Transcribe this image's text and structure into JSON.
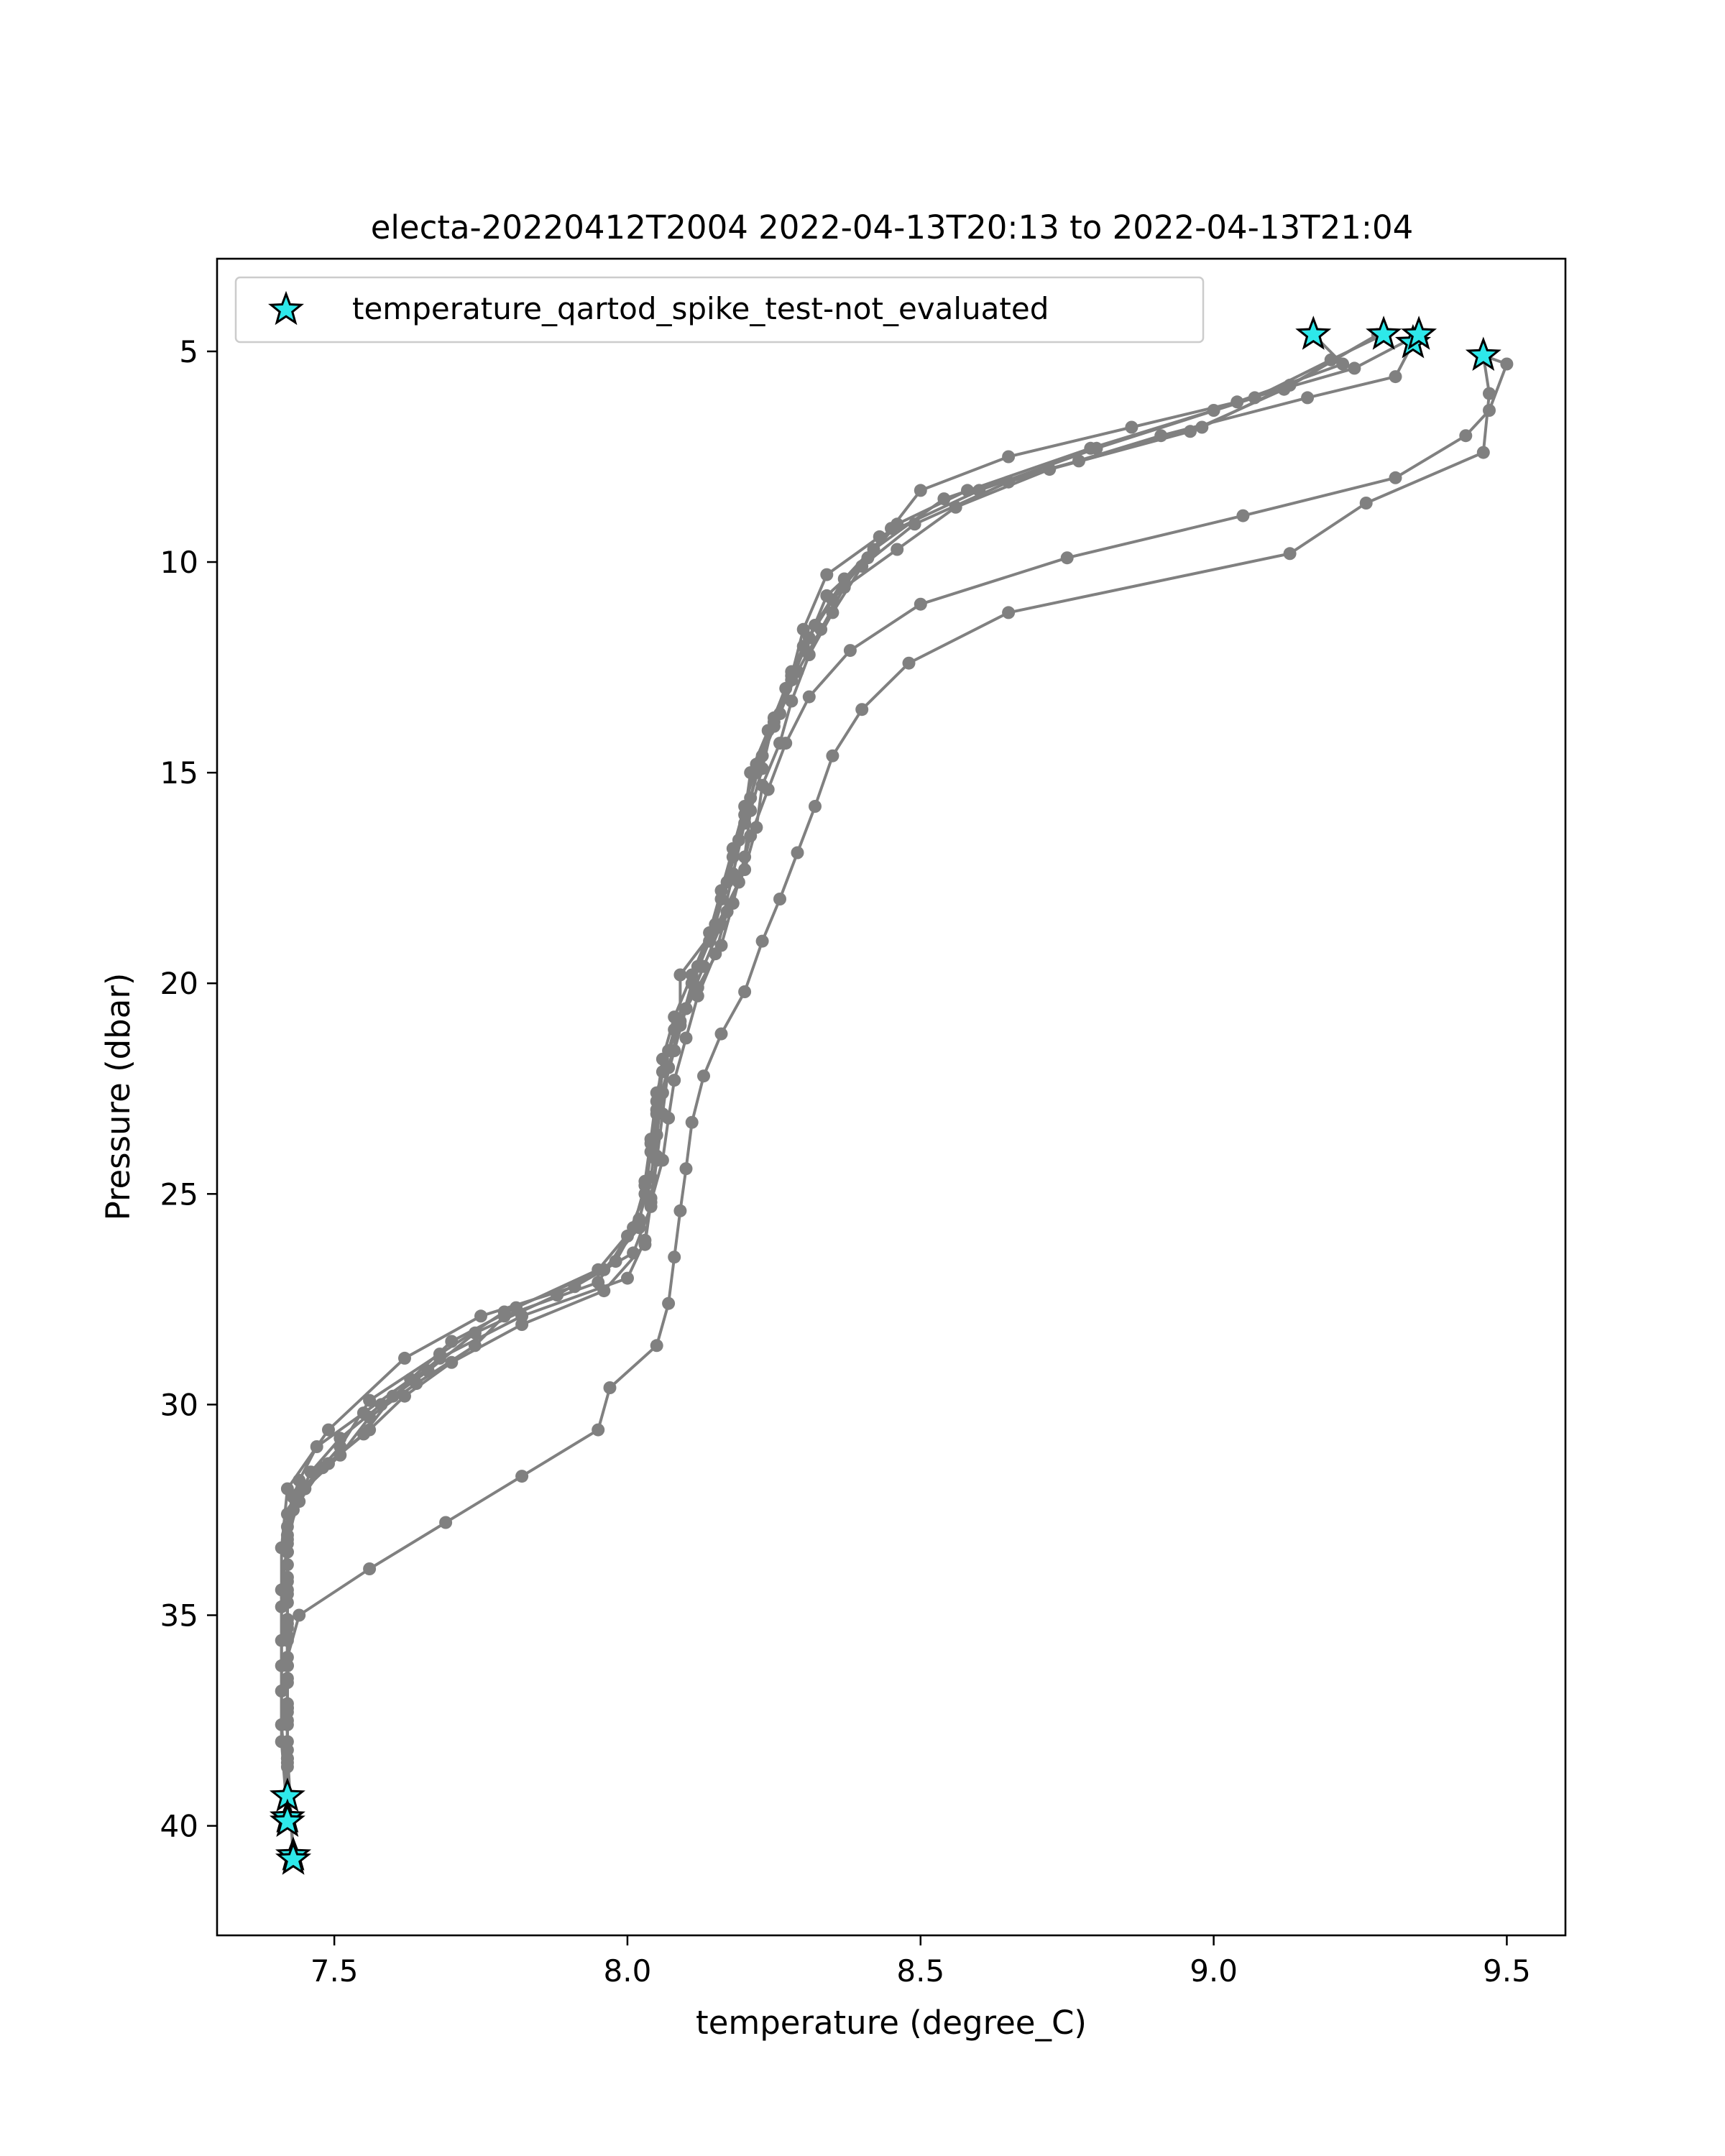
{
  "chart_data": {
    "type": "line",
    "title": "electa-20220412T2004 2022-04-13T20:13 to 2022-04-13T21:04",
    "xlabel": "temperature (degree_C)",
    "ylabel": "Pressure (dbar)",
    "xlim": [
      7.3,
      9.6
    ],
    "ylim": [
      42.6,
      2.8
    ],
    "y_inverted": true,
    "grid": false,
    "x_ticks": [
      7.5,
      8.0,
      8.5,
      9.0,
      9.5
    ],
    "x_tick_labels": [
      "7.5",
      "8.0",
      "8.5",
      "9.0",
      "9.5"
    ],
    "y_ticks": [
      5,
      10,
      15,
      20,
      25,
      30,
      35,
      40
    ],
    "y_tick_labels": [
      "5",
      "10",
      "15",
      "20",
      "25",
      "30",
      "35",
      "40"
    ],
    "legend": {
      "location": "upper left",
      "entries": [
        {
          "label": "temperature_qartod_spike_test-not_evaluated",
          "marker": "star",
          "color": "#2ee8ea"
        }
      ]
    },
    "colors": {
      "profile_line": "#808080",
      "profile_marker": "#808080",
      "flag_marker_fill": "#2ee8ea",
      "flag_marker_edge": "#000000"
    },
    "series": [
      {
        "points": [
          [
            9.46,
            5.1
          ],
          [
            9.5,
            5.3
          ],
          [
            9.47,
            6.4
          ],
          [
            9.43,
            7.0
          ],
          [
            9.31,
            8.0
          ],
          [
            9.05,
            8.9
          ],
          [
            8.75,
            9.9
          ],
          [
            8.5,
            11.0
          ],
          [
            8.38,
            12.1
          ],
          [
            8.31,
            13.2
          ],
          [
            8.27,
            14.3
          ],
          [
            8.24,
            15.4
          ],
          [
            8.21,
            16.5
          ],
          [
            8.19,
            17.6
          ],
          [
            8.15,
            18.7
          ],
          [
            8.09,
            19.8
          ],
          [
            8.09,
            20.9
          ],
          [
            8.07,
            22.0
          ],
          [
            8.06,
            23.1
          ],
          [
            8.05,
            24.2
          ],
          [
            8.04,
            25.3
          ],
          [
            8.01,
            26.4
          ],
          [
            7.91,
            27.2
          ],
          [
            7.75,
            27.9
          ],
          [
            7.62,
            28.9
          ],
          [
            7.49,
            30.6
          ],
          [
            7.42,
            32.0
          ],
          [
            7.41,
            33.4
          ],
          [
            7.41,
            34.8
          ],
          [
            7.41,
            36.2
          ],
          [
            7.41,
            37.6
          ],
          [
            7.42,
            39.3
          ]
        ]
      },
      {
        "points": [
          [
            9.46,
            5.1
          ],
          [
            9.47,
            6.0
          ],
          [
            9.46,
            7.4
          ],
          [
            9.26,
            8.6
          ],
          [
            9.13,
            9.8
          ],
          [
            8.65,
            11.2
          ],
          [
            8.48,
            12.4
          ],
          [
            8.4,
            13.5
          ],
          [
            8.35,
            14.6
          ],
          [
            8.32,
            15.8
          ],
          [
            8.29,
            16.9
          ],
          [
            8.26,
            18.0
          ],
          [
            8.23,
            19.0
          ],
          [
            8.2,
            20.2
          ],
          [
            8.16,
            21.2
          ],
          [
            8.13,
            22.2
          ],
          [
            8.11,
            23.3
          ],
          [
            8.1,
            24.4
          ],
          [
            8.09,
            25.4
          ],
          [
            8.08,
            26.5
          ],
          [
            8.07,
            27.6
          ],
          [
            8.05,
            28.6
          ],
          [
            7.97,
            29.6
          ],
          [
            7.95,
            30.6
          ],
          [
            7.82,
            31.7
          ],
          [
            7.69,
            32.8
          ],
          [
            7.56,
            33.9
          ],
          [
            7.44,
            35.0
          ],
          [
            7.42,
            36.0
          ],
          [
            7.42,
            37.2
          ],
          [
            7.42,
            38.4
          ],
          [
            7.42,
            39.9
          ]
        ]
      },
      {
        "points": [
          [
            9.29,
            4.6
          ],
          [
            9.2,
            5.2
          ],
          [
            9.07,
            6.1
          ],
          [
            8.8,
            7.3
          ],
          [
            8.6,
            8.3
          ],
          [
            8.43,
            9.4
          ],
          [
            8.34,
            10.3
          ],
          [
            8.3,
            11.6
          ],
          [
            8.28,
            12.7
          ],
          [
            8.25,
            13.9
          ],
          [
            8.22,
            15.0
          ],
          [
            8.2,
            16.2
          ],
          [
            8.18,
            17.4
          ],
          [
            8.16,
            18.6
          ],
          [
            8.13,
            19.6
          ],
          [
            8.1,
            20.6
          ],
          [
            8.07,
            21.6
          ],
          [
            8.05,
            22.6
          ],
          [
            8.04,
            23.7
          ],
          [
            8.03,
            24.7
          ],
          [
            8.02,
            25.8
          ],
          [
            7.96,
            26.8
          ],
          [
            7.79,
            27.8
          ],
          [
            7.68,
            28.8
          ],
          [
            7.56,
            29.9
          ],
          [
            7.51,
            31.0
          ],
          [
            7.44,
            32.1
          ],
          [
            7.42,
            33.3
          ],
          [
            7.41,
            34.4
          ],
          [
            7.41,
            35.6
          ],
          [
            7.41,
            36.8
          ],
          [
            7.41,
            38.0
          ],
          [
            7.42,
            39.8
          ]
        ]
      },
      {
        "points": [
          [
            9.34,
            4.8
          ],
          [
            9.31,
            5.6
          ],
          [
            9.16,
            6.1
          ],
          [
            8.91,
            7.0
          ],
          [
            8.65,
            8.1
          ],
          [
            8.49,
            9.1
          ],
          [
            8.4,
            10.1
          ],
          [
            8.35,
            11.2
          ],
          [
            8.31,
            12.2
          ],
          [
            8.28,
            13.3
          ],
          [
            8.26,
            14.3
          ],
          [
            8.23,
            15.3
          ],
          [
            8.22,
            16.3
          ],
          [
            8.2,
            17.3
          ],
          [
            8.17,
            18.3
          ],
          [
            8.15,
            19.3
          ],
          [
            8.12,
            20.3
          ],
          [
            8.1,
            21.3
          ],
          [
            8.08,
            22.3
          ],
          [
            8.07,
            23.2
          ],
          [
            8.06,
            24.2
          ],
          [
            8.04,
            25.2
          ],
          [
            8.03,
            26.2
          ],
          [
            7.96,
            27.3
          ],
          [
            7.82,
            28.1
          ],
          [
            7.7,
            29.0
          ],
          [
            7.62,
            29.8
          ],
          [
            7.56,
            30.6
          ],
          [
            7.49,
            31.4
          ],
          [
            7.43,
            32.2
          ],
          [
            7.42,
            33.2
          ],
          [
            7.42,
            34.2
          ],
          [
            7.42,
            35.2
          ],
          [
            7.42,
            36.2
          ],
          [
            7.42,
            37.2
          ],
          [
            7.42,
            38.2
          ],
          [
            7.43,
            40.7
          ]
        ]
      },
      {
        "points": [
          [
            9.35,
            4.6
          ],
          [
            9.24,
            5.4
          ],
          [
            9.04,
            6.2
          ],
          [
            8.86,
            6.8
          ],
          [
            8.65,
            7.5
          ],
          [
            8.5,
            8.3
          ],
          [
            8.45,
            9.2
          ],
          [
            8.37,
            10.4
          ],
          [
            8.32,
            11.5
          ],
          [
            8.28,
            12.6
          ],
          [
            8.25,
            13.7
          ],
          [
            8.23,
            14.9
          ],
          [
            8.21,
            15.9
          ],
          [
            8.2,
            17.0
          ],
          [
            8.18,
            18.1
          ],
          [
            8.16,
            19.1
          ],
          [
            8.12,
            20.1
          ],
          [
            8.08,
            21.1
          ],
          [
            8.06,
            22.1
          ],
          [
            8.05,
            23.1
          ],
          [
            8.05,
            24.1
          ],
          [
            8.04,
            25.1
          ],
          [
            8.03,
            26.1
          ],
          [
            8.0,
            27.0
          ],
          [
            7.82,
            27.9
          ],
          [
            7.68,
            28.9
          ],
          [
            7.6,
            29.8
          ],
          [
            7.55,
            30.7
          ],
          [
            7.48,
            31.5
          ],
          [
            7.44,
            32.3
          ],
          [
            7.42,
            33.1
          ],
          [
            7.42,
            34.1
          ],
          [
            7.42,
            35.1
          ],
          [
            7.42,
            36.2
          ],
          [
            7.42,
            37.3
          ],
          [
            7.42,
            38.4
          ],
          [
            7.43,
            40.8
          ]
        ]
      },
      {
        "points": [
          [
            9.17,
            4.6
          ],
          [
            9.22,
            5.3
          ],
          [
            9.0,
            6.4
          ],
          [
            8.79,
            7.3
          ],
          [
            8.54,
            8.5
          ],
          [
            8.42,
            9.7
          ],
          [
            8.35,
            10.9
          ],
          [
            8.3,
            12.0
          ],
          [
            8.27,
            13.0
          ],
          [
            8.24,
            14.0
          ],
          [
            8.21,
            15.0
          ],
          [
            8.2,
            16.0
          ],
          [
            8.18,
            17.0
          ],
          [
            8.16,
            18.0
          ],
          [
            8.14,
            19.0
          ],
          [
            8.11,
            20.0
          ],
          [
            8.09,
            21.0
          ],
          [
            8.07,
            22.0
          ],
          [
            8.05,
            23.0
          ],
          [
            8.04,
            24.0
          ],
          [
            8.03,
            25.0
          ],
          [
            8.0,
            26.0
          ],
          [
            7.95,
            27.1
          ],
          [
            7.79,
            27.9
          ],
          [
            7.74,
            28.6
          ],
          [
            7.64,
            29.5
          ],
          [
            7.56,
            30.3
          ],
          [
            7.51,
            31.2
          ],
          [
            7.45,
            32.0
          ],
          [
            7.42,
            32.9
          ],
          [
            7.42,
            33.8
          ],
          [
            7.42,
            34.7
          ],
          [
            7.42,
            35.6
          ],
          [
            7.42,
            36.6
          ],
          [
            7.42,
            37.6
          ],
          [
            7.42,
            38.6
          ],
          [
            7.42,
            39.4
          ]
        ]
      },
      {
        "points": [
          [
            9.28,
            4.6
          ],
          [
            9.13,
            5.8
          ],
          [
            8.98,
            6.8
          ],
          [
            8.77,
            7.6
          ],
          [
            8.58,
            8.3
          ],
          [
            8.46,
            9.1
          ],
          [
            8.41,
            9.9
          ],
          [
            8.34,
            10.8
          ],
          [
            8.31,
            11.8
          ],
          [
            8.28,
            12.8
          ],
          [
            8.25,
            13.8
          ],
          [
            8.22,
            14.8
          ],
          [
            8.2,
            15.8
          ],
          [
            8.18,
            16.8
          ],
          [
            8.16,
            17.8
          ],
          [
            8.14,
            18.8
          ],
          [
            8.11,
            19.8
          ],
          [
            8.08,
            20.8
          ],
          [
            8.06,
            21.8
          ],
          [
            8.05,
            22.8
          ],
          [
            8.04,
            23.8
          ],
          [
            8.03,
            24.8
          ],
          [
            8.01,
            25.8
          ],
          [
            7.95,
            26.8
          ],
          [
            7.81,
            27.7
          ],
          [
            7.7,
            28.5
          ],
          [
            7.63,
            29.4
          ],
          [
            7.55,
            30.2
          ],
          [
            7.47,
            31.0
          ],
          [
            7.44,
            31.8
          ],
          [
            7.42,
            32.6
          ],
          [
            7.42,
            33.5
          ],
          [
            7.42,
            34.4
          ],
          [
            7.42,
            35.3
          ],
          [
            7.42,
            36.2
          ],
          [
            7.42,
            37.1
          ],
          [
            7.42,
            38.0
          ],
          [
            7.42,
            39.9
          ]
        ]
      },
      {
        "points": [
          [
            9.28,
            4.6
          ],
          [
            9.12,
            5.9
          ],
          [
            8.96,
            6.9
          ],
          [
            8.72,
            7.8
          ],
          [
            8.56,
            8.7
          ],
          [
            8.46,
            9.7
          ],
          [
            8.37,
            10.6
          ],
          [
            8.33,
            11.6
          ],
          [
            8.29,
            12.6
          ],
          [
            8.26,
            13.6
          ],
          [
            8.23,
            14.6
          ],
          [
            8.21,
            15.6
          ],
          [
            8.19,
            16.6
          ],
          [
            8.17,
            17.6
          ],
          [
            8.15,
            18.6
          ],
          [
            8.12,
            19.6
          ],
          [
            8.1,
            20.6
          ],
          [
            8.08,
            21.6
          ],
          [
            8.06,
            22.6
          ],
          [
            8.05,
            23.6
          ],
          [
            8.04,
            24.6
          ],
          [
            8.02,
            25.6
          ],
          [
            7.98,
            26.6
          ],
          [
            7.88,
            27.4
          ],
          [
            7.74,
            28.3
          ],
          [
            7.66,
            29.2
          ],
          [
            7.58,
            30.0
          ],
          [
            7.51,
            30.8
          ],
          [
            7.46,
            31.6
          ],
          [
            7.43,
            32.5
          ],
          [
            7.42,
            33.5
          ],
          [
            7.42,
            34.5
          ],
          [
            7.42,
            35.5
          ],
          [
            7.42,
            36.5
          ],
          [
            7.42,
            37.5
          ],
          [
            7.42,
            38.5
          ],
          [
            7.42,
            39.4
          ]
        ]
      }
    ],
    "flagged_points": [
      [
        9.17,
        4.6
      ],
      [
        9.29,
        4.6
      ],
      [
        9.34,
        4.8
      ],
      [
        9.35,
        4.6
      ],
      [
        9.46,
        5.1
      ],
      [
        7.42,
        39.3
      ],
      [
        7.42,
        39.8
      ],
      [
        7.42,
        39.9
      ],
      [
        7.43,
        40.7
      ],
      [
        7.43,
        40.8
      ]
    ]
  }
}
